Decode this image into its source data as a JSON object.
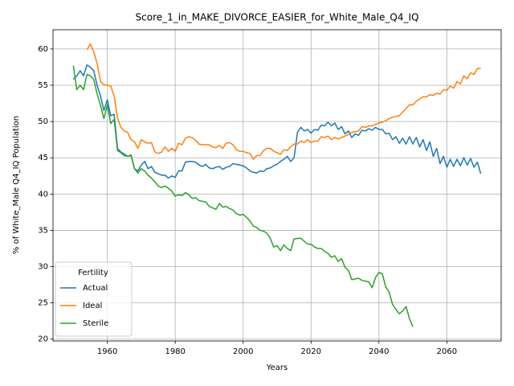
{
  "chart_data": {
    "type": "line",
    "title": "Score_1_in_MAKE_DIVORCE_EASIER_for_White_Male_Q4_IQ",
    "xlabel": "Years",
    "ylabel": "% of White_Male Q4_IQ Population",
    "x": [
      1950,
      1951,
      1952,
      1953,
      1954,
      1955,
      1956,
      1957,
      1958,
      1959,
      1960,
      1961,
      1962,
      1963,
      1964,
      1965,
      1966,
      1967,
      1968,
      1969,
      1970,
      1971,
      1972,
      1973,
      1974,
      1975,
      1976,
      1977,
      1978,
      1979,
      1980,
      1981,
      1982,
      1983,
      1984,
      1985,
      1986,
      1987,
      1988,
      1989,
      1990,
      1991,
      1992,
      1993,
      1994,
      1995,
      1996,
      1997,
      1998,
      1999,
      2000,
      2001,
      2002,
      2003,
      2004,
      2005,
      2006,
      2007,
      2008,
      2009,
      2010,
      2011,
      2012,
      2013,
      2014,
      2015,
      2016,
      2017,
      2018,
      2019,
      2020,
      2021,
      2022,
      2023,
      2024,
      2025,
      2026,
      2027,
      2028,
      2029,
      2030,
      2031,
      2032,
      2033,
      2034,
      2035,
      2036,
      2037,
      2038,
      2039,
      2040,
      2041,
      2042,
      2043,
      2044,
      2045,
      2046,
      2047,
      2048,
      2049,
      2050,
      2051,
      2052,
      2053,
      2054,
      2055,
      2056,
      2057,
      2058,
      2059,
      2060,
      2061,
      2062,
      2063,
      2064,
      2065,
      2066,
      2067,
      2068,
      2069,
      2070
    ],
    "series": [
      {
        "name": "Actual",
        "color": "#1f77b4",
        "values": [
          55.8,
          56.3,
          57.0,
          56.3,
          57.8,
          57.5,
          57.0,
          55.0,
          53.5,
          51.5,
          53.0,
          50.8,
          51.0,
          46.3,
          45.8,
          45.5,
          45.2,
          45.3,
          43.5,
          43.2,
          44.0,
          44.5,
          43.5,
          43.8,
          43.0,
          42.8,
          42.6,
          42.6,
          42.2,
          42.5,
          42.3,
          43.2,
          43.2,
          44.4,
          44.5,
          44.5,
          44.4,
          44.0,
          43.8,
          44.1,
          43.6,
          43.5,
          43.7,
          43.8,
          43.4,
          43.7,
          43.8,
          44.2,
          44.1,
          44.0,
          43.9,
          43.6,
          43.2,
          43.0,
          42.9,
          43.2,
          43.1,
          43.5,
          43.6,
          43.9,
          44.1,
          44.5,
          44.8,
          45.2,
          44.5,
          45.0,
          48.5,
          49.2,
          48.7,
          48.9,
          48.4,
          48.9,
          48.8,
          49.5,
          49.4,
          49.9,
          49.4,
          49.8,
          48.9,
          49.3,
          48.3,
          48.7,
          47.8,
          48.3,
          48.1,
          48.8,
          48.7,
          49.0,
          48.8,
          49.2,
          48.9,
          48.9,
          48.3,
          48.4,
          47.5,
          47.9,
          47.0,
          47.7,
          46.9,
          47.9,
          46.9,
          47.8,
          46.5,
          47.5,
          46.0,
          47.2,
          45.2,
          46.3,
          44.2,
          45.2,
          43.7,
          44.8,
          43.8,
          44.8,
          43.9,
          45.0,
          44.0,
          44.9,
          43.7,
          44.4,
          42.8
        ]
      },
      {
        "name": "Ideal",
        "color": "#ff7f0e",
        "values": [
          null,
          null,
          null,
          null,
          59.9,
          60.7,
          59.6,
          58.0,
          55.5,
          55.1,
          55.0,
          54.9,
          53.5,
          50.5,
          49.2,
          48.7,
          48.5,
          47.5,
          47.2,
          46.3,
          47.5,
          47.2,
          47.0,
          47.1,
          45.8,
          45.6,
          45.8,
          46.5,
          45.9,
          46.3,
          45.9,
          47.0,
          46.8,
          47.7,
          47.9,
          47.8,
          47.4,
          46.9,
          46.8,
          46.8,
          46.8,
          46.5,
          46.4,
          46.7,
          46.3,
          47.0,
          47.1,
          46.8,
          46.1,
          45.9,
          45.9,
          45.7,
          45.6,
          44.8,
          45.3,
          45.3,
          46.0,
          46.3,
          46.3,
          45.9,
          45.7,
          45.5,
          46.1,
          46.0,
          46.5,
          46.9,
          46.9,
          47.3,
          47.1,
          47.5,
          47.1,
          47.3,
          47.3,
          47.9,
          47.8,
          48.0,
          47.5,
          47.8,
          47.6,
          47.8,
          48.0,
          48.2,
          48.5,
          48.6,
          48.7,
          49.3,
          49.2,
          49.4,
          49.4,
          49.6,
          49.8,
          49.9,
          50.1,
          50.4,
          50.6,
          50.7,
          50.8,
          51.3,
          51.8,
          52.3,
          52.3,
          52.8,
          53.1,
          53.4,
          53.4,
          53.7,
          53.6,
          53.9,
          53.8,
          54.4,
          54.3,
          54.9,
          54.6,
          55.5,
          55.2,
          56.3,
          55.9,
          56.7,
          56.5,
          57.3,
          57.3
        ]
      },
      {
        "name": "Sterile",
        "color": "#2ca02c",
        "values": [
          57.7,
          54.4,
          55.0,
          54.4,
          56.5,
          56.3,
          55.8,
          53.8,
          52.2,
          50.4,
          52.3,
          49.7,
          50.3,
          46.0,
          45.7,
          45.3,
          45.2,
          45.4,
          43.5,
          42.9,
          43.5,
          43.2,
          42.6,
          42.2,
          41.7,
          41.1,
          40.9,
          41.1,
          40.8,
          40.4,
          39.7,
          39.9,
          39.8,
          40.2,
          39.9,
          39.4,
          39.5,
          39.1,
          39.0,
          38.9,
          38.3,
          38.1,
          37.9,
          38.7,
          38.2,
          38.3,
          38.0,
          37.8,
          37.3,
          37.1,
          37.2,
          36.8,
          36.3,
          35.6,
          35.4,
          35.0,
          34.9,
          34.6,
          33.9,
          32.7,
          32.9,
          32.2,
          33.0,
          32.5,
          32.2,
          33.8,
          33.9,
          33.9,
          33.5,
          33.1,
          33.1,
          32.7,
          32.5,
          32.5,
          32.1,
          31.8,
          31.3,
          31.5,
          30.7,
          31.1,
          29.9,
          29.5,
          28.2,
          28.3,
          28.4,
          28.1,
          28.0,
          27.9,
          27.1,
          28.5,
          29.2,
          29.0,
          27.2,
          26.5,
          24.8,
          24.1,
          23.5,
          23.9,
          24.5,
          22.8,
          21.7,
          null,
          null,
          null,
          null,
          null,
          null,
          null,
          null,
          null,
          null,
          null,
          null,
          null,
          null,
          null,
          null,
          null,
          null,
          null,
          null
        ]
      }
    ],
    "xlim": [
      1944,
      2076
    ],
    "ylim": [
      19.75,
      62.65
    ],
    "xticks": [
      1960,
      1980,
      2000,
      2020,
      2040,
      2060
    ],
    "yticks": [
      20,
      25,
      30,
      35,
      40,
      45,
      50,
      55,
      60
    ],
    "grid": true,
    "legend": {
      "title": "Fertility",
      "loc": "lower left"
    }
  }
}
